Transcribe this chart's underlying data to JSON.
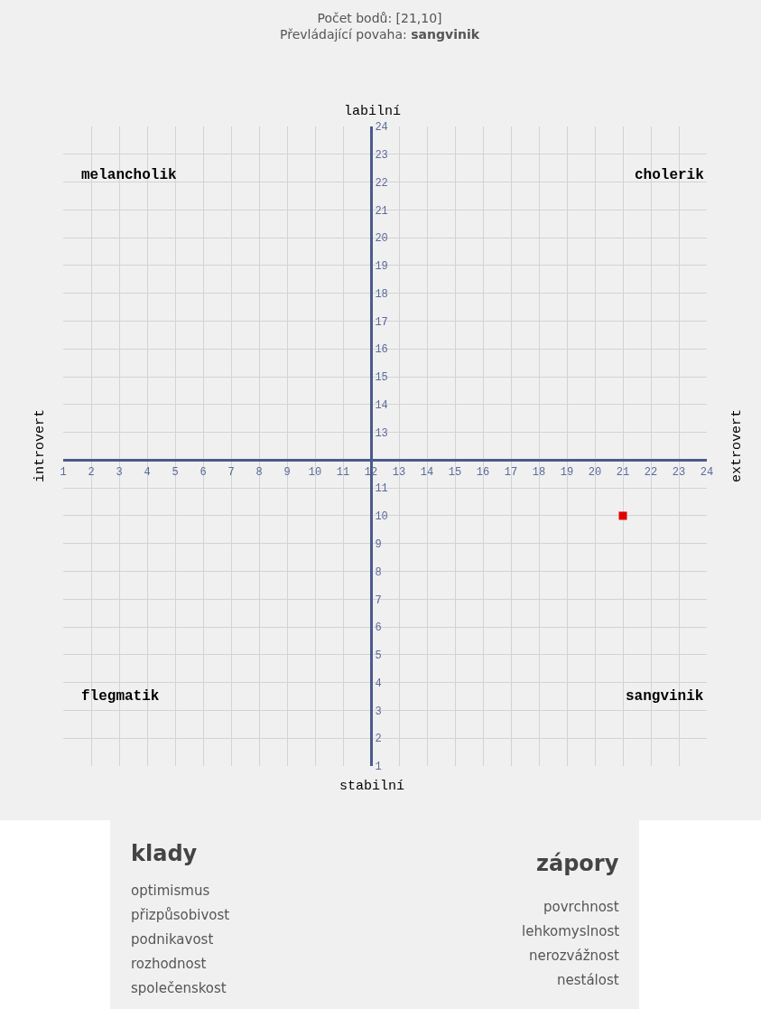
{
  "chart_data": {
    "type": "scatter",
    "title": "Počet bodů: [21,10]",
    "subtitle": "Převládající povaha: sangvinik",
    "x": [
      21
    ],
    "values": [
      10
    ],
    "color": "#e00000",
    "marker": "square",
    "xlim": [
      1,
      24
    ],
    "ylim": [
      1,
      24
    ],
    "xticks": [
      1,
      2,
      3,
      4,
      5,
      6,
      7,
      8,
      9,
      10,
      11,
      12,
      13,
      14,
      15,
      16,
      17,
      18,
      19,
      20,
      21,
      22,
      23,
      24
    ],
    "yticks": [
      1,
      2,
      3,
      4,
      5,
      6,
      7,
      8,
      9,
      10,
      11,
      {
        "value": 12,
        "label": null
      },
      13,
      14,
      15,
      16,
      17,
      18,
      19,
      20,
      21,
      22,
      23,
      24
    ],
    "grid": true,
    "legend": false,
    "annotations": [
      "labilní",
      "stabilní",
      "introvert",
      "extrovert",
      "melancholik",
      "cholerik",
      "flegmatik",
      "sangvinik",
      "klady",
      "optimismus",
      "přizpůsobivost",
      "podnikavost",
      "rozhodnost",
      "společenskost",
      "zápory",
      "povrchnost",
      "lehkomyslnost",
      "nerozvážnost",
      "nestálost"
    ]
  }
}
